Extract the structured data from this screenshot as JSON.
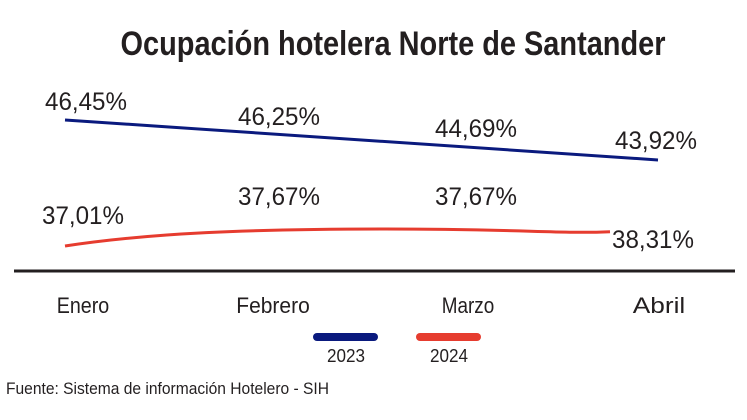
{
  "chart_data": {
    "type": "line",
    "title": "Ocupación hotelera Norte de Santander",
    "categories": [
      "Enero",
      "Febrero",
      "Marzo",
      "Abril"
    ],
    "series": [
      {
        "name": "2023",
        "values": [
          46.45,
          46.25,
          44.69,
          43.92
        ],
        "labels": [
          "46,45%",
          "46,25%",
          "44,69%",
          "43,92%"
        ],
        "color": "#0a1a7e"
      },
      {
        "name": "2024",
        "values": [
          37.01,
          37.67,
          37.67,
          38.31
        ],
        "labels": [
          "37,01%",
          "37,67%",
          "37,67%",
          "38,31%"
        ],
        "color": "#e63c2f"
      }
    ],
    "xlabel": "",
    "ylabel": "",
    "grid": false,
    "legend": "bottom-center"
  },
  "source": "Fuente: Sistema de información Hotelero - SIH"
}
